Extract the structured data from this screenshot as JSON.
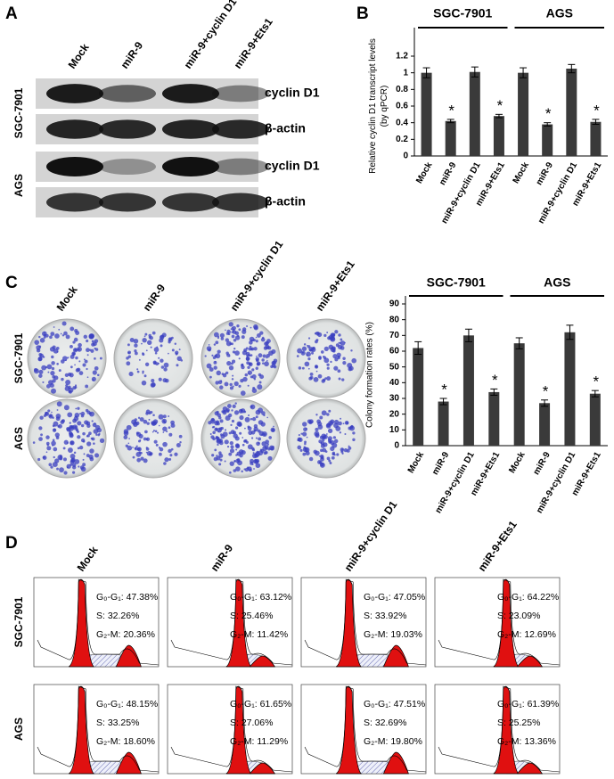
{
  "panels": {
    "a": "A",
    "b": "B",
    "c": "C",
    "d": "D"
  },
  "western_blot": {
    "columns": [
      "Mock",
      "miR-9",
      "miR-9+cyclin D1",
      "miR-9+Ets1"
    ],
    "cell_lines": [
      "SGC-7901",
      "AGS"
    ],
    "proteins": [
      "cyclin D1",
      "β-actin",
      "cyclin D1",
      "β-actin"
    ]
  },
  "colony_images": {
    "columns": [
      "Mock",
      "miR-9",
      "miR-9+cyclin D1",
      "miR-9+Ets1"
    ],
    "cell_lines": [
      "SGC-7901",
      "AGS"
    ]
  },
  "chart_data": [
    {
      "type": "bar",
      "y_label": [
        "Relative cyclin D1 transcript levels",
        "(by qPCR)"
      ],
      "groups": [
        "SGC-7901",
        "AGS"
      ],
      "categories": [
        "Mock",
        "miR-9",
        "miR-9+cyclin D1",
        "miR-9+Ets1",
        "Mock",
        "miR-9",
        "miR-9+cyclin D1",
        "miR-9+Ets1"
      ],
      "values": [
        1.0,
        0.42,
        1.01,
        0.48,
        1.0,
        0.38,
        1.05,
        0.41
      ],
      "errors": [
        0.06,
        0.02,
        0.06,
        0.02,
        0.06,
        0.02,
        0.05,
        0.03
      ],
      "significance": [
        null,
        "*",
        null,
        "*",
        null,
        "*",
        null,
        "*"
      ],
      "color": "#3a3a3a",
      "ylim": [
        0,
        1.2
      ],
      "yticks": [
        0,
        0.2,
        0.4,
        0.6,
        0.8,
        1,
        1.2
      ]
    },
    {
      "type": "bar",
      "y_label": [
        "Colony formation rates (%)"
      ],
      "groups": [
        "SGC-7901",
        "AGS"
      ],
      "categories": [
        "Mock",
        "miR-9",
        "miR-9+cyclin D1",
        "miR-9+Ets1",
        "Mock",
        "miR-9",
        "miR-9+cyclin D1",
        "miR-9+Ets1"
      ],
      "values": [
        62,
        28,
        70,
        34,
        65,
        27,
        72,
        33
      ],
      "errors": [
        4,
        2,
        4,
        2,
        3.5,
        2,
        4.5,
        2
      ],
      "significance": [
        null,
        "*",
        null,
        "*",
        null,
        "*",
        null,
        "*"
      ],
      "color": "#3a3a3a",
      "ylim": [
        0,
        90
      ],
      "yticks": [
        0,
        10,
        20,
        30,
        40,
        50,
        60,
        70,
        80,
        90
      ]
    }
  ],
  "cell_cycle": {
    "columns": [
      "Mock",
      "miR-9",
      "miR-9+cyclin D1",
      "miR-9+Ets1"
    ],
    "cell_lines": [
      "SGC-7901",
      "AGS"
    ],
    "rows": [
      [
        [
          "G₀-G₁: 47.38%",
          "S: 32.26%",
          "G₂-M: 20.36%"
        ],
        [
          "G₀-G₁: 63.12%",
          "S: 25.46%",
          "G₂-M: 11.42%"
        ],
        [
          "G₀-G₁: 47.05%",
          "S: 33.92%",
          "G₂-M: 19.03%"
        ],
        [
          "G₀-G₁: 64.22%",
          "S: 23.09%",
          "G₂-M: 12.69%"
        ]
      ],
      [
        [
          "G₀-G₁: 48.15%",
          "S: 33.25%",
          "G₂-M: 18.60%"
        ],
        [
          "G₀-G₁: 61.65%",
          "S: 27.06%",
          "G₂-M: 11.29%"
        ],
        [
          "G₀-G₁: 47.51%",
          "S: 32.69%",
          "G₂-M: 19.80%"
        ],
        [
          "G₀-G₁: 61.39%",
          "S: 25.25%",
          "G₂-M: 13.36%"
        ]
      ]
    ]
  }
}
